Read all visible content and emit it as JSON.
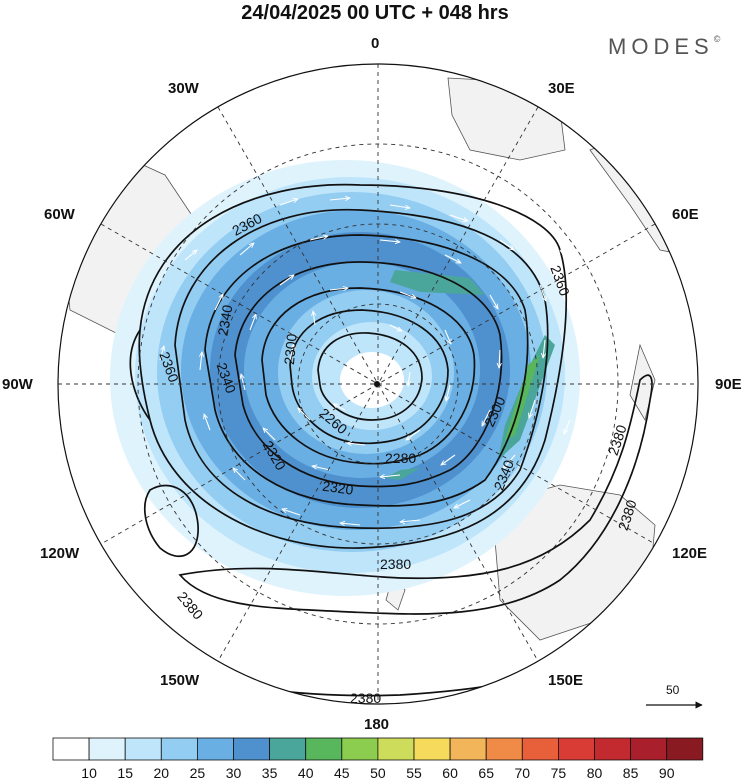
{
  "title": "24/04/2025  00 UTC  + 048 hrs",
  "brand": "MODES",
  "brand_mark": "©",
  "longitude_labels": {
    "lon_0": "0",
    "lon_30e": "30E",
    "lon_60e": "60E",
    "lon_90e": "90E",
    "lon_120e": "120E",
    "lon_150e": "150E",
    "lon_180": "180",
    "lon_150w": "150W",
    "lon_120w": "120W",
    "lon_90w": "90W",
    "lon_60w": "60W",
    "lon_30w": "30W"
  },
  "contour_labels": [
    "2360",
    "2340",
    "2300",
    "2340",
    "2360",
    "2260",
    "2320",
    "2280",
    "2320",
    "2300",
    "2340",
    "2360",
    "2380",
    "2380",
    "2380",
    "2380",
    "2380"
  ],
  "reference_vector": {
    "label": "50"
  },
  "colorbar": {
    "ticks": [
      "10",
      "15",
      "20",
      "25",
      "30",
      "35",
      "40",
      "45",
      "50",
      "55",
      "60",
      "65",
      "70",
      "75",
      "80",
      "85",
      "90"
    ],
    "colors": [
      "#ffffff",
      "#dff3fd",
      "#bfe5fb",
      "#93cdf2",
      "#6aafe4",
      "#4f91cf",
      "#4aa69a",
      "#58b65c",
      "#8ccc4f",
      "#cddc5a",
      "#f5da5b",
      "#f3b55a",
      "#ef8b46",
      "#e8603a",
      "#d93c35",
      "#c22a2f",
      "#a91f2c",
      "#8a1a22"
    ]
  },
  "colors": {
    "land": "#f2f2f2",
    "ocean": "#ffffff",
    "contour": "#111111",
    "graticule": "#333333"
  }
}
